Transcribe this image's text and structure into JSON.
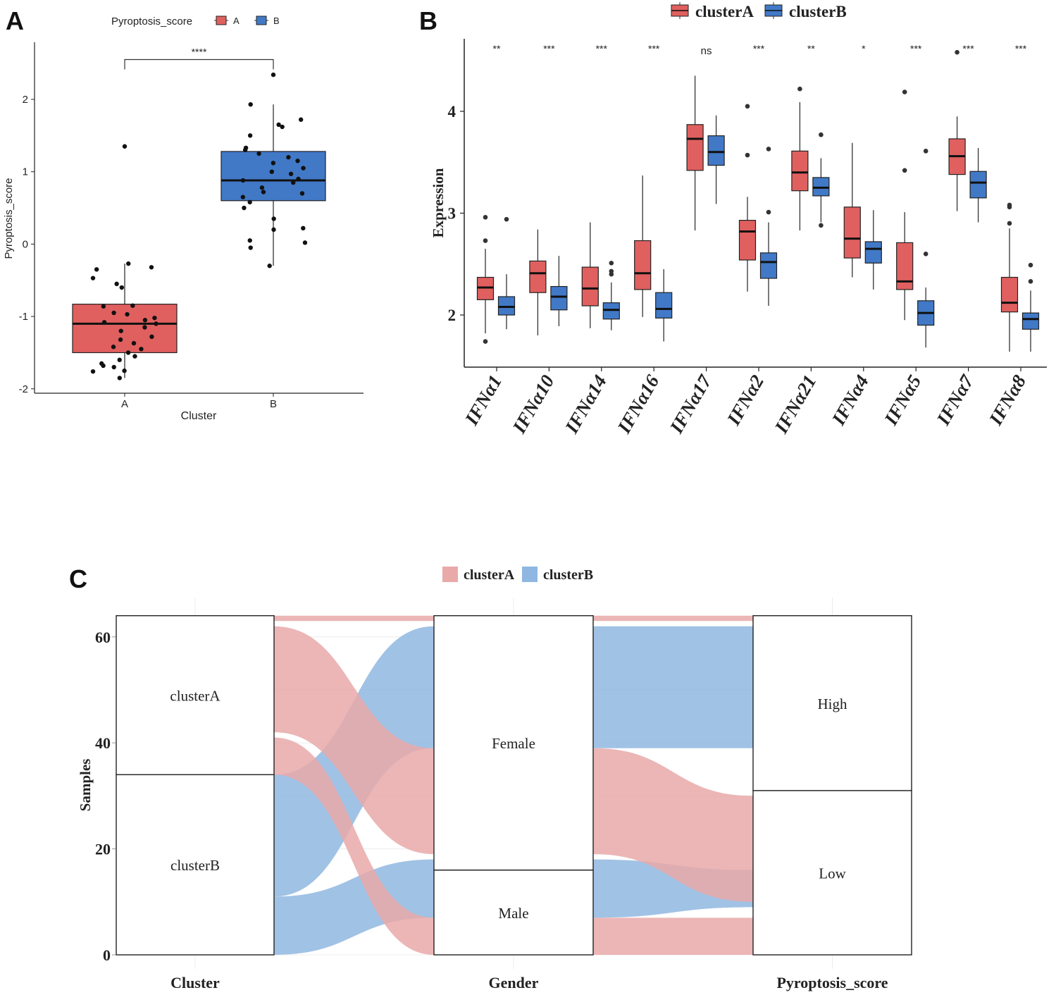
{
  "panels": {
    "a": "A",
    "b": "B",
    "c": "C"
  },
  "colors": {
    "clusterA": "#E0605F",
    "clusterB": "#4179C7",
    "flowA": "#E9A9A9",
    "flowB": "#8FB7E1",
    "box_edge": "#222222"
  },
  "chart_data": [
    {
      "id": "A",
      "type": "box",
      "title": "",
      "xlabel": "Cluster",
      "ylabel": "Pyroptosis_score",
      "legend": {
        "title": "Pyroptosis_score",
        "entries": [
          "A",
          "B"
        ],
        "position": "top"
      },
      "categories": [
        "A",
        "B"
      ],
      "ylim": [
        -2.05,
        2.65
      ],
      "yticks": [
        -2,
        -1,
        0,
        1,
        2
      ],
      "significance": {
        "from": "A",
        "to": "B",
        "label": "****",
        "y": 2.55
      },
      "boxes": [
        {
          "group": "A",
          "min": -1.85,
          "q1": -1.5,
          "median": -1.1,
          "q3": -0.83,
          "max": -0.27,
          "outliers": [
            1.35
          ]
        },
        {
          "group": "B",
          "min": -0.3,
          "q1": 0.6,
          "median": 0.88,
          "q3": 1.28,
          "max": 1.93,
          "outliers": [
            2.34
          ]
        }
      ],
      "points": {
        "A": [
          -0.47,
          -0.32,
          -0.35,
          -0.27,
          -0.55,
          -0.6,
          -0.85,
          -0.86,
          -0.95,
          -0.97,
          -1.02,
          -1.05,
          -1.08,
          -1.1,
          -1.15,
          -1.2,
          -1.28,
          -1.32,
          -1.37,
          -1.42,
          -1.45,
          -1.5,
          -1.55,
          -1.6,
          -1.65,
          -1.7,
          -1.75,
          -1.76,
          -1.68,
          -1.85
        ],
        "B": [
          1.93,
          1.72,
          1.65,
          1.62,
          1.5,
          1.33,
          1.3,
          1.25,
          1.2,
          1.15,
          1.12,
          1.05,
          1.0,
          0.97,
          0.9,
          0.88,
          0.85,
          0.78,
          0.72,
          0.7,
          0.65,
          0.58,
          0.5,
          0.35,
          0.22,
          0.2,
          0.05,
          0.02,
          -0.05,
          -0.3
        ]
      }
    },
    {
      "id": "B",
      "type": "box",
      "title": "",
      "xlabel": "",
      "ylabel": "Expression",
      "legend": {
        "entries": [
          "clusterA",
          "clusterB"
        ],
        "position": "top"
      },
      "categories": [
        "IFNα1",
        "IFNα10",
        "IFNα14",
        "IFNα16",
        "IFNα17",
        "IFNα2",
        "IFNα21",
        "IFNα4",
        "IFNα5",
        "IFNα7",
        "IFNα8"
      ],
      "significance": [
        "**",
        "***",
        "***",
        "***",
        "ns",
        "***",
        "**",
        "*",
        "***",
        "***",
        "***"
      ],
      "ylim": [
        1.5,
        4.7
      ],
      "yticks": [
        2,
        3,
        4
      ],
      "series": [
        {
          "name": "clusterA",
          "boxes": [
            {
              "min": 1.82,
              "q1": 2.15,
              "median": 2.27,
              "q3": 2.37,
              "max": 2.65,
              "outliers": [
                1.74,
                2.73,
                2.96
              ]
            },
            {
              "min": 1.8,
              "q1": 2.22,
              "median": 2.41,
              "q3": 2.53,
              "max": 2.84,
              "outliers": []
            },
            {
              "min": 1.87,
              "q1": 2.09,
              "median": 2.26,
              "q3": 2.47,
              "max": 2.91,
              "outliers": []
            },
            {
              "min": 1.98,
              "q1": 2.25,
              "median": 2.41,
              "q3": 2.73,
              "max": 3.37,
              "outliers": []
            },
            {
              "min": 2.83,
              "q1": 3.42,
              "median": 3.73,
              "q3": 3.87,
              "max": 4.35,
              "outliers": []
            },
            {
              "min": 2.23,
              "q1": 2.54,
              "median": 2.82,
              "q3": 2.93,
              "max": 3.16,
              "outliers": [
                3.57,
                4.05
              ]
            },
            {
              "min": 2.83,
              "q1": 3.22,
              "median": 3.4,
              "q3": 3.61,
              "max": 4.09,
              "outliers": [
                4.22
              ]
            },
            {
              "min": 2.37,
              "q1": 2.56,
              "median": 2.75,
              "q3": 3.06,
              "max": 3.69,
              "outliers": []
            },
            {
              "min": 1.95,
              "q1": 2.25,
              "median": 2.33,
              "q3": 2.71,
              "max": 3.01,
              "outliers": [
                3.42,
                4.19
              ]
            },
            {
              "min": 3.02,
              "q1": 3.38,
              "median": 3.56,
              "q3": 3.73,
              "max": 3.95,
              "outliers": [
                4.58
              ]
            },
            {
              "min": 1.64,
              "q1": 2.03,
              "median": 2.12,
              "q3": 2.37,
              "max": 2.85,
              "outliers": [
                2.9,
                3.06,
                3.08
              ]
            }
          ]
        },
        {
          "name": "clusterB",
          "boxes": [
            {
              "min": 1.86,
              "q1": 2.0,
              "median": 2.08,
              "q3": 2.18,
              "max": 2.4,
              "outliers": [
                2.94
              ]
            },
            {
              "min": 1.89,
              "q1": 2.05,
              "median": 2.18,
              "q3": 2.28,
              "max": 2.58,
              "outliers": []
            },
            {
              "min": 1.85,
              "q1": 1.96,
              "median": 2.05,
              "q3": 2.12,
              "max": 2.32,
              "outliers": [
                2.4,
                2.43,
                2.51
              ]
            },
            {
              "min": 1.74,
              "q1": 1.97,
              "median": 2.06,
              "q3": 2.22,
              "max": 2.45,
              "outliers": []
            },
            {
              "min": 3.09,
              "q1": 3.47,
              "median": 3.6,
              "q3": 3.76,
              "max": 3.96,
              "outliers": []
            },
            {
              "min": 2.09,
              "q1": 2.36,
              "median": 2.52,
              "q3": 2.61,
              "max": 2.91,
              "outliers": [
                3.01,
                3.63
              ]
            },
            {
              "min": 2.91,
              "q1": 3.17,
              "median": 3.25,
              "q3": 3.35,
              "max": 3.54,
              "outliers": [
                2.88,
                3.77
              ]
            },
            {
              "min": 2.25,
              "q1": 2.51,
              "median": 2.65,
              "q3": 2.72,
              "max": 3.03,
              "outliers": []
            },
            {
              "min": 1.68,
              "q1": 1.9,
              "median": 2.02,
              "q3": 2.14,
              "max": 2.27,
              "outliers": [
                2.6,
                3.61
              ]
            },
            {
              "min": 2.91,
              "q1": 3.15,
              "median": 3.3,
              "q3": 3.41,
              "max": 3.64,
              "outliers": []
            },
            {
              "min": 1.64,
              "q1": 1.86,
              "median": 1.96,
              "q3": 2.02,
              "max": 2.24,
              "outliers": [
                2.33,
                2.49
              ]
            }
          ]
        }
      ]
    },
    {
      "id": "C",
      "type": "alluvial",
      "title": "",
      "ylabel": "Samples",
      "legend": {
        "entries": [
          "clusterA",
          "clusterB"
        ],
        "position": "top"
      },
      "ylim": [
        0,
        64
      ],
      "yticks": [
        0,
        20,
        40,
        60
      ],
      "axes": [
        {
          "label": "Cluster",
          "strata": [
            {
              "name": "clusterB",
              "from": 0,
              "to": 34
            },
            {
              "name": "clusterA",
              "from": 34,
              "to": 64
            }
          ]
        },
        {
          "label": "Gender",
          "strata": [
            {
              "name": "Male",
              "from": 0,
              "to": 16
            },
            {
              "name": "Female",
              "from": 16,
              "to": 64
            }
          ]
        },
        {
          "label": "Pyroptosis_score",
          "strata": [
            {
              "name": "Low",
              "from": 0,
              "to": 31
            },
            {
              "name": "High",
              "from": 31,
              "to": 64
            }
          ]
        }
      ],
      "flows": [
        {
          "fill": "clusterB",
          "y1": [
            0,
            11
          ],
          "y2": [
            7,
            18
          ],
          "y3": [
            9,
            16
          ]
        },
        {
          "fill": "clusterB",
          "y1": [
            11,
            34
          ],
          "y2": [
            39,
            62
          ],
          "y3": [
            39,
            62
          ]
        },
        {
          "fill": "clusterA",
          "y1": [
            34,
            41
          ],
          "y2": [
            0,
            7
          ],
          "y3": [
            0,
            7
          ]
        },
        {
          "fill": "clusterA",
          "y1": [
            42,
            62
          ],
          "y2": [
            19,
            39
          ],
          "y3": [
            10,
            30
          ]
        },
        {
          "fill": "clusterA",
          "y1": [
            63,
            64
          ],
          "y2": [
            63,
            64
          ],
          "y3": [
            63,
            64
          ]
        }
      ]
    }
  ]
}
